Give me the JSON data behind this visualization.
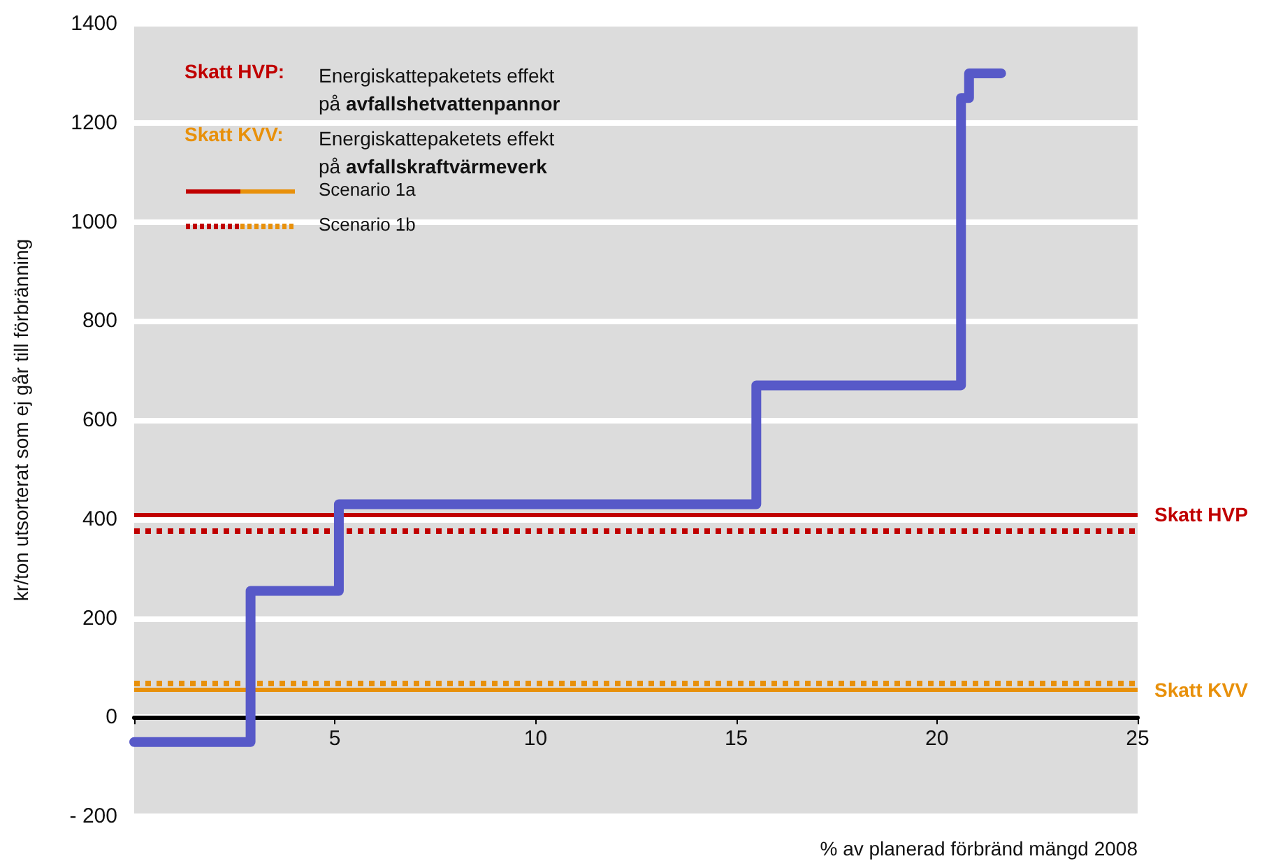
{
  "chart_data": {
    "type": "step",
    "ylabel": "kr/ton utsorterat som ej går till förbränning",
    "xlabel": "% av planerad förbränd mängd 2008",
    "x": [
      0,
      2.9,
      5.1,
      15.5,
      20.6,
      20.8,
      21.6
    ],
    "series": [
      {
        "color": "#5759c8",
        "values": [
          -50,
          255,
          430,
          670,
          1250,
          1300,
          1300
        ]
      }
    ],
    "xlim": [
      0,
      25
    ],
    "xticks": [
      {
        "value": 0,
        "label": null
      },
      5,
      10,
      15,
      20,
      25
    ],
    "ylim": [
      -200,
      1400
    ],
    "yticks": [
      {
        "value": -200,
        "label": "- 200"
      },
      0,
      200,
      400,
      600,
      800,
      1000,
      1200,
      1400
    ],
    "grid": "y",
    "line_style": "solid",
    "ref_lines": [
      {
        "axis": "y",
        "value": 410,
        "label": "Skatt HVP",
        "color": "#c00000",
        "line_style": "solid"
      },
      {
        "axis": "y",
        "value": 375,
        "color": "#c00000",
        "line_style": "dotted"
      },
      {
        "axis": "y",
        "value": 55,
        "label": "Skatt KVV",
        "color": "#e8900a",
        "line_style": "solid"
      },
      {
        "axis": "y",
        "value": 70,
        "color": "#e8900a",
        "line_style": "dotted"
      }
    ],
    "annotations": [
      "Skatt HVP:",
      "Energiskattepaketets effekt\npå avfallshetvattenpannor",
      "Skatt KVV:",
      "Energiskattepaketets effekt\npå avfallskraftvärmeverk",
      "Scenario 1a",
      "Scenario 1b"
    ]
  }
}
